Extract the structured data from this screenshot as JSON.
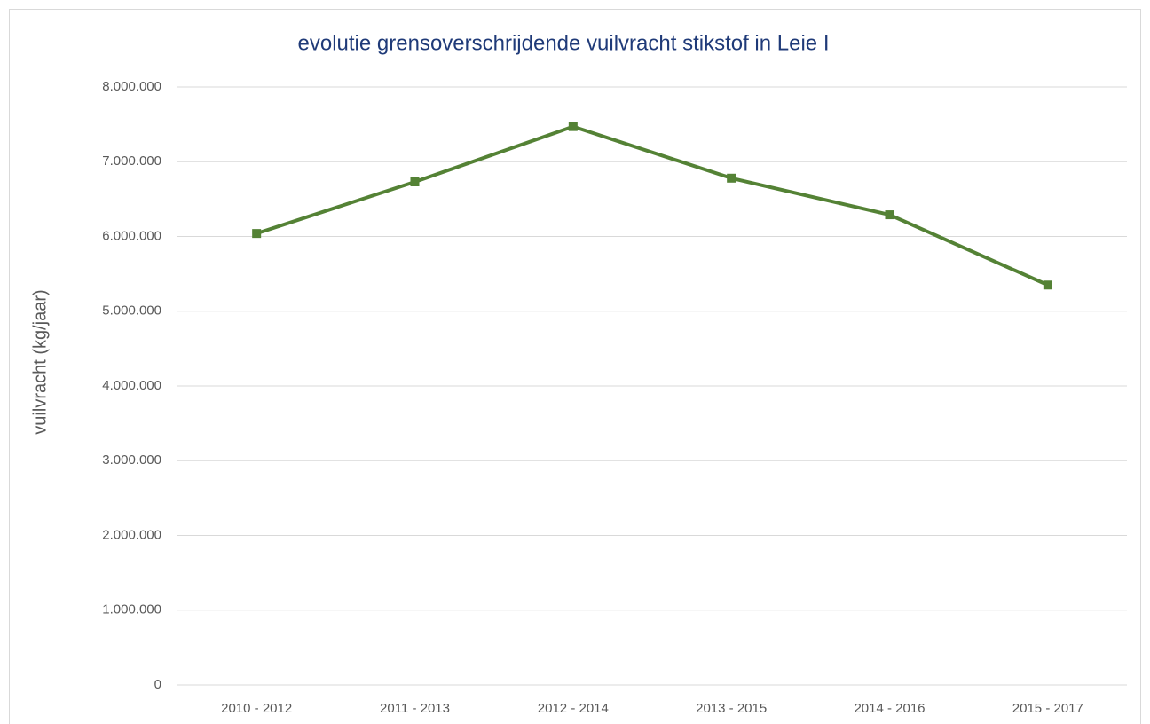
{
  "chart_data": {
    "type": "line",
    "title": "evolutie grensoverschrijdende  vuilvracht stikstof  in  Leie I",
    "y_label": "vuilvracht (kg/jaar)",
    "categories": [
      "2010 - 2012",
      "2011 - 2013",
      "2012 - 2014",
      "2013 - 2015",
      "2014 - 2016",
      "2015 - 2017"
    ],
    "series": [
      {
        "name": "vuilvracht stikstof",
        "color": "#548235",
        "values": [
          6040000,
          6730000,
          7470000,
          6780000,
          6290000,
          5350000
        ]
      }
    ],
    "ylim": [
      0,
      8000000
    ],
    "yticks": [
      0,
      {
        "value": 1000000,
        "label": "1.000.000"
      },
      {
        "value": 2000000,
        "label": "2.000.000"
      },
      {
        "value": 3000000,
        "label": "3.000.000"
      },
      {
        "value": 4000000,
        "label": "4.000.000"
      },
      {
        "value": 5000000,
        "label": "5.000.000"
      },
      {
        "value": 6000000,
        "label": "6.000.000"
      },
      {
        "value": 7000000,
        "label": "7.000.000"
      },
      {
        "value": 8000000,
        "label": "8.000.000"
      }
    ],
    "grid": true,
    "legend": false
  }
}
